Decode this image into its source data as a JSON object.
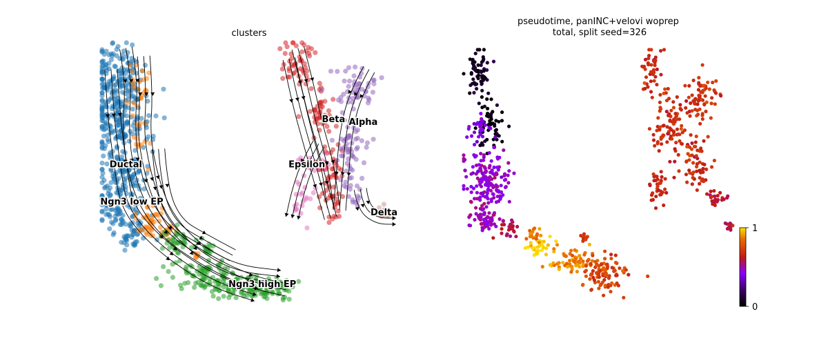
{
  "chart_data": [
    {
      "type": "scatter",
      "title": "clusters",
      "xlabel": "",
      "ylabel": "",
      "grid": false,
      "legend": "on data",
      "stream_arrows": true,
      "clusters": [
        {
          "name": "Ductal",
          "color": "#1f77b4",
          "regions": [
            [
              0.05,
              0.12,
              0.1,
              0.14,
              140
            ],
            [
              0.06,
              0.3,
              0.12,
              0.14,
              170
            ],
            [
              0.07,
              0.48,
              0.1,
              0.1,
              100
            ],
            [
              0.06,
              0.62,
              0.1,
              0.1,
              90
            ],
            [
              0.1,
              0.72,
              0.06,
              0.06,
              40
            ]
          ],
          "label_at": [
            0.08,
            0.46
          ]
        },
        {
          "name": "Ngn3 low EP",
          "color": "#ff7f0e",
          "regions": [
            [
              0.12,
              0.16,
              0.05,
              0.1,
              20
            ],
            [
              0.12,
              0.35,
              0.04,
              0.14,
              15
            ],
            [
              0.16,
              0.66,
              0.05,
              0.09,
              40
            ],
            [
              0.22,
              0.71,
              0.04,
              0.05,
              15
            ],
            [
              0.32,
              0.8,
              0.02,
              0.02,
              5
            ]
          ],
          "label_at": [
            0.1,
            0.6
          ]
        },
        {
          "name": "Ngn3 high EP",
          "color": "#2ca02c",
          "regions": [
            [
              0.26,
              0.75,
              0.08,
              0.05,
              40
            ],
            [
              0.34,
              0.88,
              0.12,
              0.07,
              90
            ],
            [
              0.46,
              0.92,
              0.09,
              0.05,
              70
            ],
            [
              0.58,
              0.92,
              0.08,
              0.05,
              60
            ],
            [
              0.36,
              0.78,
              0.03,
              0.03,
              15
            ]
          ],
          "label_at": [
            0.54,
            0.91
          ]
        },
        {
          "name": "Beta",
          "color": "#d62728",
          "regions": [
            [
              0.66,
              0.08,
              0.06,
              0.1,
              50
            ],
            [
              0.73,
              0.26,
              0.05,
              0.1,
              40
            ],
            [
              0.77,
              0.48,
              0.05,
              0.14,
              50
            ],
            [
              0.79,
              0.62,
              0.04,
              0.06,
              15
            ]
          ],
          "label_at": [
            0.78,
            0.29
          ]
        },
        {
          "name": "Alpha",
          "color": "#9467bd",
          "regions": [
            [
              0.86,
              0.17,
              0.07,
              0.08,
              50
            ],
            [
              0.84,
              0.38,
              0.06,
              0.12,
              50
            ],
            [
              0.84,
              0.56,
              0.04,
              0.08,
              20
            ]
          ],
          "label_at": [
            0.88,
            0.3
          ]
        },
        {
          "name": "Epsilon",
          "color": "#e377c2",
          "regions": [
            [
              0.71,
              0.45,
              0.06,
              0.05,
              20
            ],
            [
              0.67,
              0.58,
              0.04,
              0.1,
              20
            ]
          ],
          "label_at": [
            0.69,
            0.46
          ]
        },
        {
          "name": "Delta",
          "color": "#c49c94",
          "regions": [
            [
              0.95,
              0.64,
              0.03,
              0.03,
              12
            ]
          ],
          "label_at": [
            0.95,
            0.64
          ]
        }
      ],
      "stream_paths": [
        [
          [
            0.08,
            0.02
          ],
          [
            0.1,
            0.15
          ],
          [
            0.09,
            0.3
          ],
          [
            0.1,
            0.45
          ],
          [
            0.14,
            0.6
          ],
          [
            0.22,
            0.72
          ],
          [
            0.35,
            0.82
          ],
          [
            0.5,
            0.9
          ],
          [
            0.62,
            0.93
          ]
        ],
        [
          [
            0.14,
            0.05
          ],
          [
            0.15,
            0.2
          ],
          [
            0.14,
            0.35
          ],
          [
            0.17,
            0.52
          ],
          [
            0.22,
            0.66
          ],
          [
            0.32,
            0.78
          ],
          [
            0.45,
            0.86
          ],
          [
            0.6,
            0.88
          ]
        ],
        [
          [
            0.03,
            0.1
          ],
          [
            0.04,
            0.28
          ],
          [
            0.06,
            0.45
          ],
          [
            0.08,
            0.6
          ],
          [
            0.14,
            0.7
          ],
          [
            0.24,
            0.8
          ],
          [
            0.38,
            0.9
          ],
          [
            0.52,
            0.95
          ]
        ],
        [
          [
            0.19,
            0.4
          ],
          [
            0.2,
            0.55
          ],
          [
            0.25,
            0.68
          ],
          [
            0.34,
            0.74
          ],
          [
            0.44,
            0.8
          ]
        ],
        [
          [
            0.66,
            0.02
          ],
          [
            0.69,
            0.15
          ],
          [
            0.72,
            0.3
          ],
          [
            0.76,
            0.46
          ],
          [
            0.78,
            0.62
          ]
        ],
        [
          [
            0.63,
            0.06
          ],
          [
            0.66,
            0.22
          ],
          [
            0.7,
            0.38
          ],
          [
            0.74,
            0.54
          ],
          [
            0.77,
            0.66
          ]
        ],
        [
          [
            0.9,
            0.1
          ],
          [
            0.85,
            0.2
          ],
          [
            0.82,
            0.35
          ],
          [
            0.81,
            0.5
          ],
          [
            0.8,
            0.63
          ]
        ],
        [
          [
            0.73,
            0.38
          ],
          [
            0.69,
            0.46
          ],
          [
            0.66,
            0.56
          ],
          [
            0.64,
            0.66
          ]
        ],
        [
          [
            0.87,
            0.55
          ],
          [
            0.88,
            0.62
          ],
          [
            0.93,
            0.66
          ],
          [
            0.99,
            0.66
          ]
        ]
      ]
    },
    {
      "type": "scatter",
      "title": "pseudotime, panINC+velovi woprep\ntotal, split seed=326",
      "xlabel": "",
      "ylabel": "",
      "grid": false,
      "colorbar": {
        "min": 0,
        "max": 1,
        "ticks": [
          "0",
          "1"
        ],
        "colormap": "gnuplot"
      },
      "regions": [
        [
          0.05,
          0.1,
          0.05,
          0.1,
          70,
          0.06
        ],
        [
          0.1,
          0.3,
          0.06,
          0.1,
          60,
          0.03
        ],
        [
          0.06,
          0.32,
          0.06,
          0.06,
          30,
          0.4
        ],
        [
          0.08,
          0.52,
          0.09,
          0.12,
          150,
          0.46
        ],
        [
          0.08,
          0.68,
          0.07,
          0.07,
          60,
          0.48
        ],
        [
          0.17,
          0.72,
          0.04,
          0.04,
          25,
          0.58
        ],
        [
          0.28,
          0.79,
          0.05,
          0.05,
          40,
          1.0
        ],
        [
          0.26,
          0.74,
          0.03,
          0.03,
          15,
          0.84
        ],
        [
          0.4,
          0.85,
          0.08,
          0.06,
          60,
          0.88
        ],
        [
          0.52,
          0.9,
          0.1,
          0.08,
          100,
          0.74
        ],
        [
          0.44,
          0.76,
          0.03,
          0.02,
          12,
          0.7
        ],
        [
          0.69,
          0.08,
          0.05,
          0.1,
          40,
          0.66
        ],
        [
          0.76,
          0.3,
          0.07,
          0.14,
          90,
          0.68
        ],
        [
          0.88,
          0.2,
          0.07,
          0.1,
          70,
          0.7
        ],
        [
          0.72,
          0.56,
          0.04,
          0.08,
          35,
          0.66
        ],
        [
          0.86,
          0.45,
          0.06,
          0.12,
          60,
          0.68
        ],
        [
          0.93,
          0.6,
          0.04,
          0.04,
          25,
          0.62
        ],
        [
          0.98,
          0.71,
          0.02,
          0.02,
          10,
          0.6
        ]
      ]
    }
  ]
}
